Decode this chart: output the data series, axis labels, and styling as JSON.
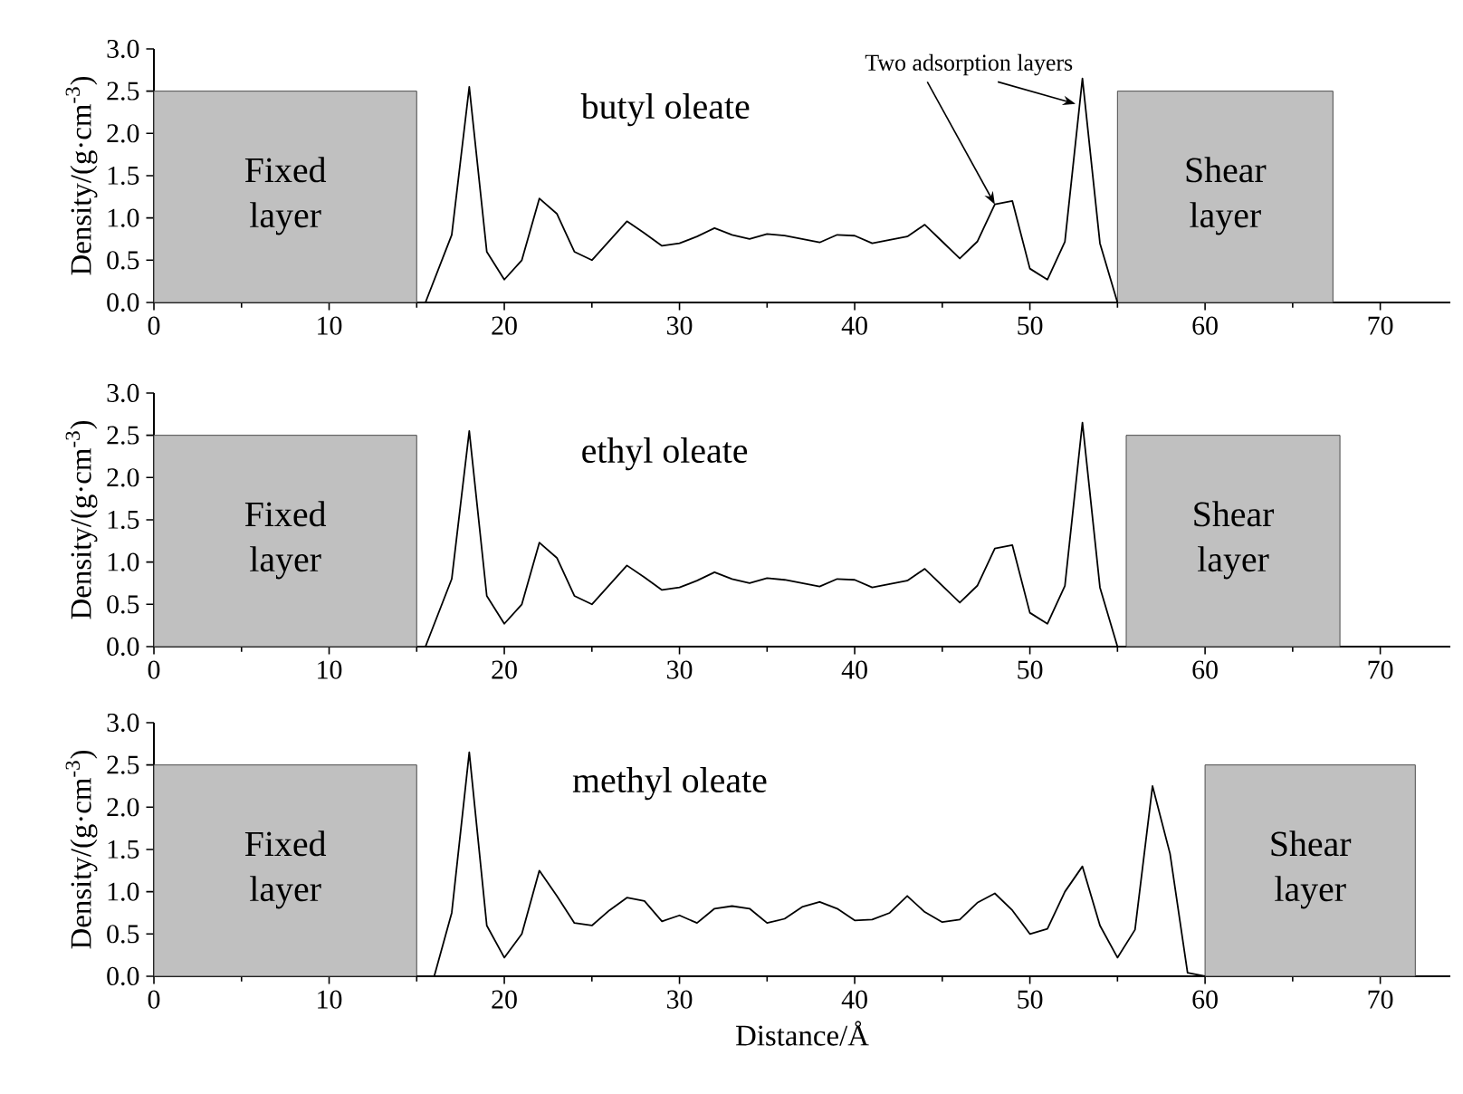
{
  "chart_data": [
    {
      "type": "line",
      "ylabel": "Density/(g·cm$^{-3}$)",
      "xlim": [
        0,
        74
      ],
      "ylim": [
        0,
        3
      ],
      "xticks": [
        0,
        10,
        20,
        30,
        40,
        50,
        60,
        70
      ],
      "yticks": [
        {
          "value": 0,
          "label": "0.0"
        },
        0.5,
        {
          "value": 1,
          "label": "1.0"
        },
        1.5,
        {
          "value": 2,
          "label": "2.0"
        },
        2.5,
        {
          "value": 3,
          "label": "3.0"
        }
      ],
      "series": [
        {
          "name": "butyl oleate",
          "color": "#000000",
          "x": [
            15.5,
            17,
            18,
            19,
            20,
            21,
            22,
            23,
            24,
            25,
            26,
            27,
            28,
            29,
            30,
            31,
            32,
            33,
            34,
            35,
            36,
            37,
            38,
            39,
            40,
            41,
            42,
            43,
            44,
            45,
            46,
            47,
            48,
            49,
            50,
            51,
            52,
            53,
            54,
            55
          ],
          "values": [
            0,
            0.8,
            2.55,
            0.6,
            0.27,
            0.5,
            1.23,
            1.05,
            0.6,
            0.5,
            0.73,
            0.96,
            0.82,
            0.67,
            0.7,
            0.78,
            0.88,
            0.8,
            0.75,
            0.81,
            0.79,
            0.75,
            0.71,
            0.8,
            0.79,
            0.7,
            0.74,
            0.78,
            0.92,
            0.72,
            0.52,
            0.72,
            1.16,
            1.2,
            0.4,
            0.27,
            0.72,
            2.65,
            0.7,
            0
          ]
        }
      ],
      "bands": [
        {
          "axis": "x",
          "from": 0,
          "to": 15,
          "label": "Fixed layer",
          "color": "#c0c0c0"
        },
        {
          "axis": "x",
          "from": 55,
          "to": 67.3,
          "label": "Shear layer",
          "color": "#c0c0c0"
        }
      ],
      "annotations": [
        {
          "text": "Two adsorption layers",
          "x": 48,
          "y": 1.16
        }
      ]
    },
    {
      "type": "line",
      "ylabel": "Density/(g·cm$^{-3}$)",
      "xlim": [
        0,
        74
      ],
      "ylim": [
        0,
        3
      ],
      "xticks": [
        0,
        10,
        20,
        30,
        40,
        50,
        60,
        70
      ],
      "yticks": [
        {
          "value": 0,
          "label": "0.0"
        },
        0.5,
        {
          "value": 1,
          "label": "1.0"
        },
        1.5,
        {
          "value": 2,
          "label": "2.0"
        },
        2.5,
        {
          "value": 3,
          "label": "3.0"
        }
      ],
      "series": [
        {
          "name": "ethyl oleate",
          "color": "#000000",
          "x": [
            15.5,
            17,
            18,
            19,
            20,
            21,
            22,
            23,
            24,
            25,
            26,
            27,
            28,
            29,
            30,
            31,
            32,
            33,
            34,
            35,
            36,
            37,
            38,
            39,
            40,
            41,
            42,
            43,
            44,
            45,
            46,
            47,
            48,
            49,
            50,
            51,
            52,
            53,
            54,
            55
          ],
          "values": [
            0,
            0.8,
            2.55,
            0.6,
            0.27,
            0.5,
            1.23,
            1.05,
            0.6,
            0.5,
            0.73,
            0.96,
            0.82,
            0.67,
            0.7,
            0.78,
            0.88,
            0.8,
            0.75,
            0.81,
            0.79,
            0.75,
            0.71,
            0.8,
            0.79,
            0.7,
            0.74,
            0.78,
            0.92,
            0.72,
            0.52,
            0.72,
            1.16,
            1.2,
            0.4,
            0.27,
            0.72,
            2.65,
            0.7,
            0
          ]
        }
      ],
      "bands": [
        {
          "axis": "x",
          "from": 0,
          "to": 15,
          "label": "Fixed layer",
          "color": "#c0c0c0"
        },
        {
          "axis": "x",
          "from": 55.5,
          "to": 67.7,
          "label": "Shear layer",
          "color": "#c0c0c0"
        }
      ]
    },
    {
      "type": "line",
      "xlabel": "Distance/Å",
      "ylabel": "Density/(g·cm$^{-3}$)",
      "xlim": [
        0,
        74
      ],
      "ylim": [
        0,
        3
      ],
      "xticks": [
        0,
        10,
        20,
        30,
        40,
        50,
        60,
        70
      ],
      "yticks": [
        {
          "value": 0,
          "label": "0.0"
        },
        0.5,
        {
          "value": 1,
          "label": "1.0"
        },
        1.5,
        {
          "value": 2,
          "label": "2.0"
        },
        2.5,
        {
          "value": 3,
          "label": "3.0"
        }
      ],
      "series": [
        {
          "name": "methyl oleate",
          "color": "#000000",
          "x": [
            15,
            16,
            17,
            18,
            19,
            20,
            21,
            22,
            23,
            24,
            25,
            26,
            27,
            28,
            29,
            30,
            31,
            32,
            33,
            34,
            35,
            36,
            37,
            38,
            39,
            40,
            41,
            42,
            43,
            44,
            45,
            46,
            47,
            48,
            49,
            50,
            51,
            52,
            53,
            54,
            55,
            56,
            57,
            58,
            59,
            60
          ],
          "values": [
            0,
            0,
            0.75,
            2.65,
            0.6,
            0.22,
            0.5,
            1.25,
            0.95,
            0.63,
            0.6,
            0.78,
            0.93,
            0.89,
            0.65,
            0.72,
            0.63,
            0.8,
            0.83,
            0.8,
            0.63,
            0.68,
            0.82,
            0.88,
            0.8,
            0.66,
            0.67,
            0.75,
            0.95,
            0.76,
            0.64,
            0.67,
            0.87,
            0.98,
            0.78,
            0.5,
            0.56,
            1.0,
            1.3,
            0.6,
            0.22,
            0.55,
            2.25,
            1.45,
            0.04,
            0
          ]
        }
      ],
      "bands": [
        {
          "axis": "x",
          "from": 0,
          "to": 15,
          "label": "Fixed layer",
          "color": "#c0c0c0"
        },
        {
          "axis": "x",
          "from": 60,
          "to": 72,
          "label": "Shear layer",
          "color": "#c0c0c0"
        }
      ]
    }
  ]
}
